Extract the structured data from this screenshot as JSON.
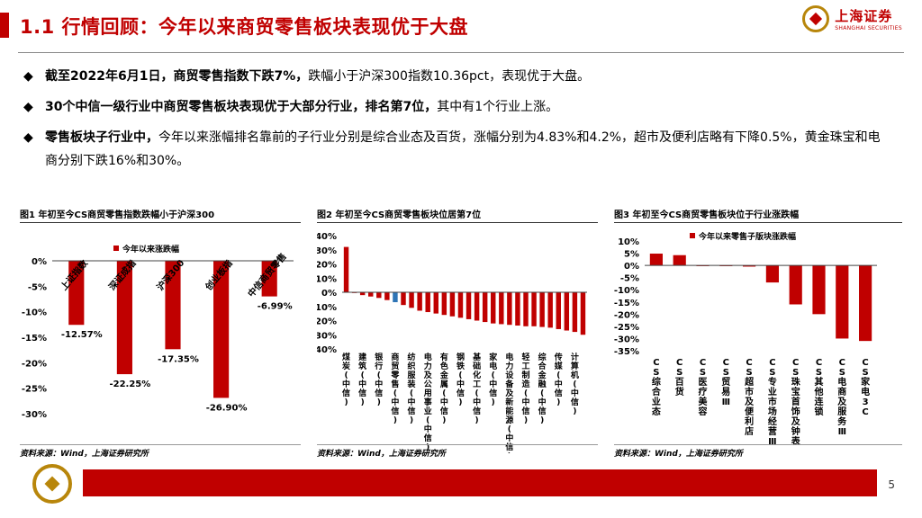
{
  "header": {
    "title": "1.1 行情回顾：今年以来商贸零售板块表现优于大盘",
    "logo_cn": "上海证券",
    "logo_en": "SHANGHAI SECURITIES"
  },
  "bullets": [
    {
      "bold": "截至2022年6月1日，商贸零售指数下跌7%，",
      "rest": "跌幅小于沪深300指数10.36pct，表现优于大盘。"
    },
    {
      "bold": "30个中信一级行业中商贸零售板块表现优于大部分行业，排名第7位，",
      "rest": "其中有1个行业上涨。"
    },
    {
      "bold": "零售板块子行业中，",
      "rest": "今年以来涨幅排名靠前的子行业分别是综合业态及百货，涨幅分别为4.83%和4.2%，超市及便利店略有下降0.5%，黄金珠宝和电商分别下跌16%和30%。"
    }
  ],
  "chart_data": [
    {
      "type": "bar",
      "title": "图1  年初至今CS商贸零售指数跌幅小于沪深300",
      "legend": "今年以来涨跌幅",
      "categories": [
        "上证指数",
        "深证成指",
        "沪深300",
        "创业板指",
        "中信商贸零售"
      ],
      "values": [
        -12.57,
        -22.25,
        -17.35,
        -26.9,
        -6.99
      ],
      "value_labels": [
        "-12.57%",
        "-22.25%",
        "-17.35%",
        "-26.90%",
        "-6.99%"
      ],
      "ylim": [
        -30,
        0
      ],
      "yticks": [
        "0%",
        "-5%",
        "-10%",
        "-15%",
        "-20%",
        "-25%",
        "-30%"
      ],
      "color": "#c00000",
      "source": "资料来源：Wind，上海证券研究所"
    },
    {
      "type": "bar",
      "title": "图2  年初至今CS商贸零售板块位居第7位",
      "categories": [
        "煤炭(中信)",
        "",
        "建筑(中信)",
        "",
        "银行(中信)",
        "",
        "商贸零售(中信)",
        "",
        "纺织服装(中信)",
        "",
        "电力及公用事业(中信)",
        "",
        "有色金属(中信)",
        "",
        "钢铁(中信)",
        "",
        "基础化工(中信)",
        "",
        "家电(中信)",
        "",
        "电力设备及新能源(中信)",
        "",
        "轻工制造(中信)",
        "",
        "综合金融(中信)",
        "",
        "传媒(中信)",
        "",
        "计算机(中信)",
        ""
      ],
      "values": [
        32,
        -0.5,
        -2,
        -3,
        -4,
        -5.5,
        -7,
        -9,
        -11,
        -13,
        -14,
        -15,
        -16,
        -17,
        -18,
        -19,
        -20,
        -21,
        -22,
        -22.5,
        -23,
        -23.5,
        -24,
        -24,
        -24.5,
        -25,
        -26,
        -27,
        -28,
        -30
      ],
      "highlight_index": 6,
      "ylim": [
        -40,
        40
      ],
      "yticks": [
        "40%",
        "30%",
        "20%",
        "10%",
        "0%",
        "-10%",
        "-20%",
        "-30%",
        "-40%"
      ],
      "color": "#c00000",
      "highlight_color": "#2e75b6",
      "source": "资料来源：Wind，上海证券研究所"
    },
    {
      "type": "bar",
      "title": "图3  年初至今CS商贸零售板块位于行业涨跌幅",
      "legend": "今年以来零售子版块涨跌幅",
      "categories": [
        "CS综合业态",
        "CS百货",
        "CS医疗美容",
        "CS贸易Ⅲ",
        "CS超市及便利店",
        "CS专业市场经营Ⅲ",
        "CS珠宝首饰及钟表",
        "CS其他连锁",
        "CS电商及服务Ⅲ",
        "CS家电3C"
      ],
      "values": [
        4.83,
        4.2,
        0,
        -0.2,
        -0.5,
        -7,
        -16,
        -20,
        -30,
        -31
      ],
      "ylim": [
        -35,
        10
      ],
      "yticks": [
        "10%",
        "5%",
        "0%",
        "-5%",
        "-10%",
        "-15%",
        "-20%",
        "-25%",
        "-30%",
        "-35%"
      ],
      "color": "#c00000",
      "source": "资料来源：Wind，上海证券研究所"
    }
  ],
  "footer": {
    "page": "5"
  }
}
